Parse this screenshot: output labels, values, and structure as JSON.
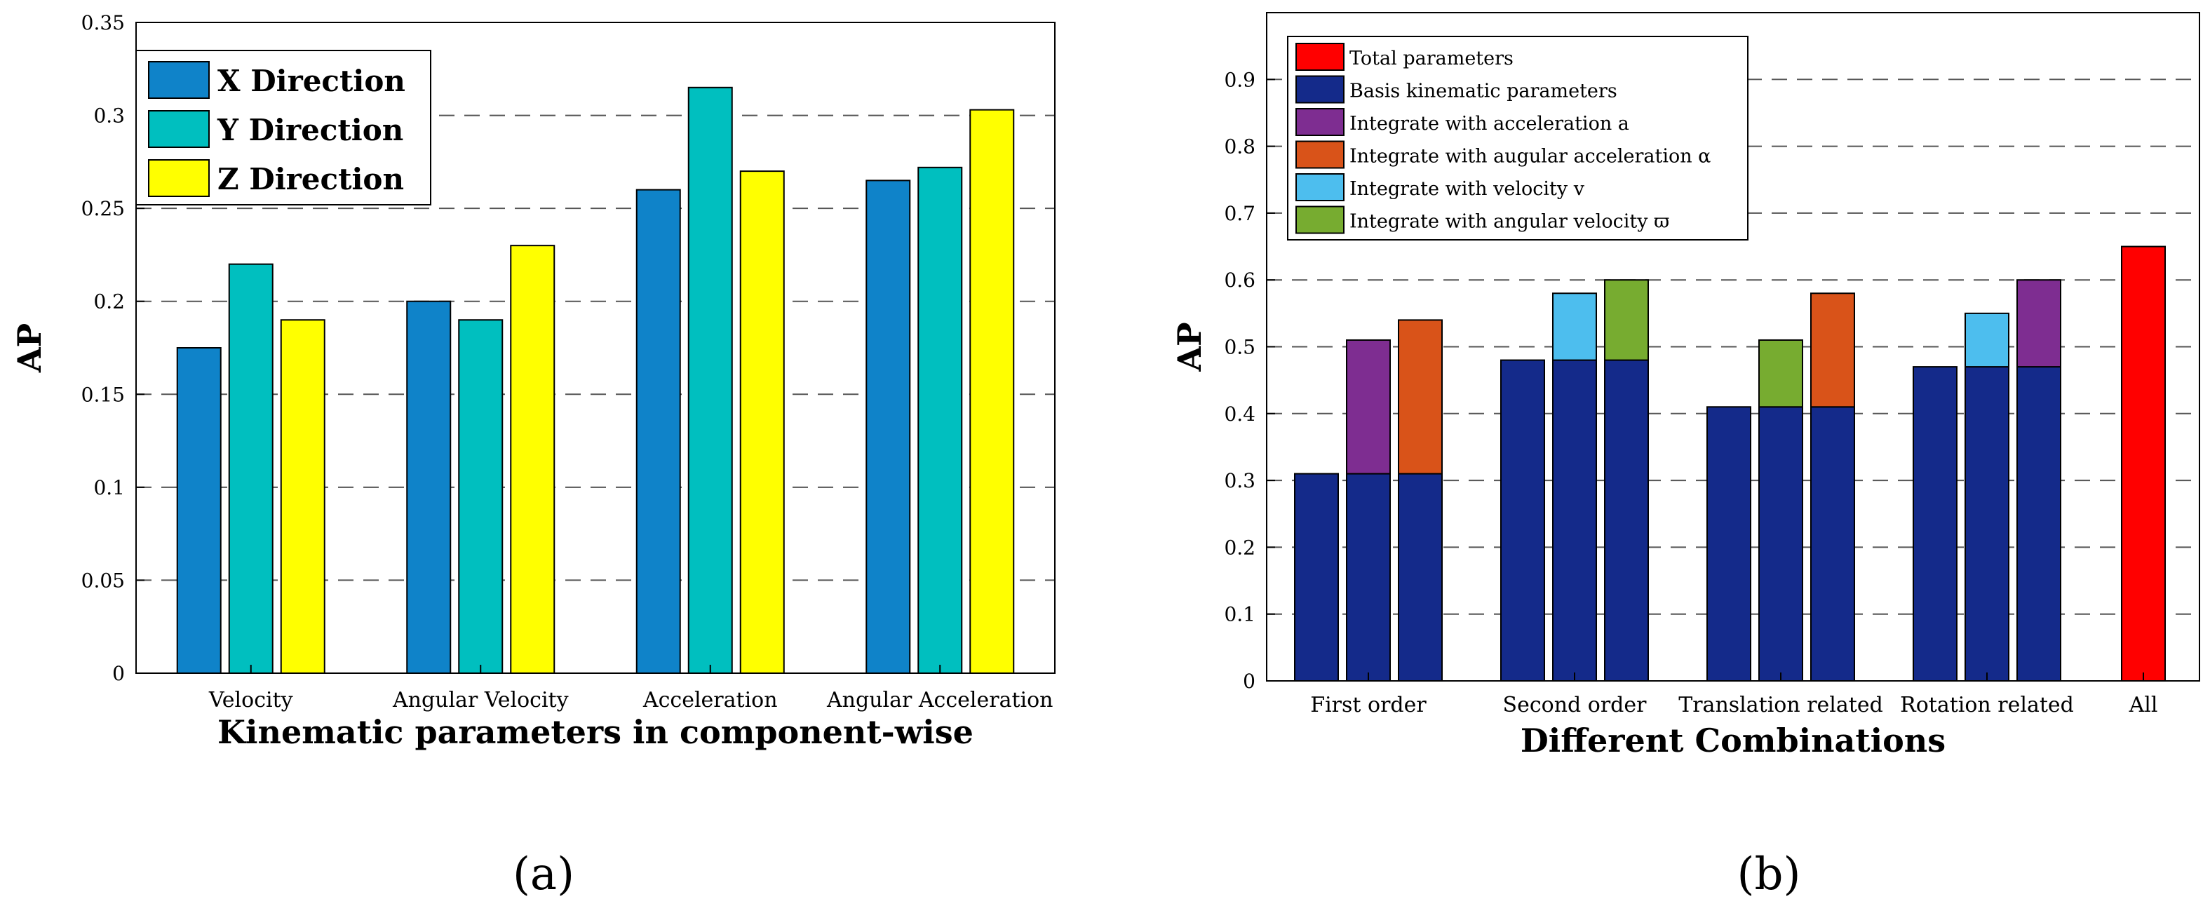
{
  "chart_data": [
    {
      "id": "a",
      "type": "bar",
      "caption": "(a)",
      "xlabel": "Kinematic parameters in component-wise",
      "ylabel": "AP",
      "ylim": [
        0,
        0.35
      ],
      "yticks": [
        "0",
        "0.05",
        "0.1",
        "0.15",
        "0.2",
        "0.25",
        "0.3",
        "0.35"
      ],
      "grid": "dashed horizontal",
      "legend_position": "top-left",
      "categories": [
        "Velocity",
        "Angular Velocity",
        "Acceleration",
        "Angular Acceleration"
      ],
      "series": [
        {
          "name": "X Direction",
          "color": "#0f83c9",
          "values": [
            0.175,
            0.2,
            0.26,
            0.265
          ]
        },
        {
          "name": "Y Direction",
          "color": "#00bfbf",
          "values": [
            0.22,
            0.19,
            0.315,
            0.272
          ]
        },
        {
          "name": "Z Direction",
          "color": "#ffff00",
          "values": [
            0.19,
            0.23,
            0.27,
            0.303
          ]
        }
      ]
    },
    {
      "id": "b",
      "type": "bar",
      "stacked": true,
      "caption": "(b)",
      "xlabel": "Different Combinations",
      "ylabel": "AP",
      "ylim": [
        0,
        1.0
      ],
      "yticks": [
        "0",
        "0.1",
        "0.2",
        "0.3",
        "0.4",
        "0.5",
        "0.6",
        "0.7",
        "0.8",
        "0.9"
      ],
      "grid": "dashed horizontal",
      "legend_position": "top-left",
      "legend": [
        {
          "name": "Total parameters",
          "key": "total",
          "color": "#ff0000"
        },
        {
          "name": "Basis kinematic parameters",
          "key": "basis",
          "color": "#142a8a"
        },
        {
          "name": "Integrate with acceleration a",
          "key": "acc",
          "color": "#7e2d91"
        },
        {
          "name": "Integrate with  augular acceleration α",
          "key": "angacc",
          "color": "#d95319"
        },
        {
          "name": "Integrate with velocity v",
          "key": "vel",
          "color": "#4dbeee"
        },
        {
          "name": "Integrate with angular velocity ϖ",
          "key": "angvel",
          "color": "#77ac30"
        }
      ],
      "groups": [
        {
          "label": "First order",
          "bars": [
            {
              "basis": 0.31
            },
            {
              "basis": 0.31,
              "extra": "acc",
              "total": 0.51
            },
            {
              "basis": 0.31,
              "extra": "angacc",
              "total": 0.54
            }
          ]
        },
        {
          "label": "Second order",
          "bars": [
            {
              "basis": 0.48
            },
            {
              "basis": 0.48,
              "extra": "vel",
              "total": 0.58
            },
            {
              "basis": 0.48,
              "extra": "angvel",
              "total": 0.6
            }
          ]
        },
        {
          "label": "Translation related",
          "bars": [
            {
              "basis": 0.41
            },
            {
              "basis": 0.41,
              "extra": "angvel",
              "total": 0.51
            },
            {
              "basis": 0.41,
              "extra": "angacc",
              "total": 0.58
            }
          ]
        },
        {
          "label": "Rotation related",
          "bars": [
            {
              "basis": 0.47
            },
            {
              "basis": 0.47,
              "extra": "vel",
              "total": 0.55
            },
            {
              "basis": 0.47,
              "extra": "acc",
              "total": 0.6
            }
          ]
        },
        {
          "label": "All",
          "bars": [
            {
              "single": "total",
              "value": 0.65
            }
          ]
        }
      ]
    }
  ]
}
